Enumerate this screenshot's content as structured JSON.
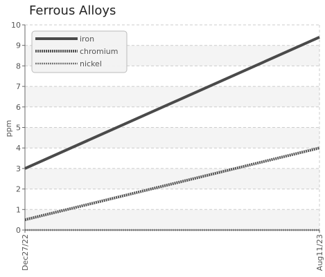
{
  "chart_data": {
    "type": "line",
    "title": "Ferrous Alloys",
    "xlabel": "",
    "ylabel": "ppm",
    "x": [
      "Dec27/22",
      "Aug11/23"
    ],
    "ylim": [
      0,
      10
    ],
    "yticks": [
      "0",
      "1",
      "2",
      "3",
      "4",
      "5",
      "6",
      "7",
      "8",
      "9",
      "10"
    ],
    "grid": true,
    "legend_position": "top-left",
    "series": [
      {
        "name": "iron",
        "values": [
          3.0,
          9.4
        ],
        "color": "#4a4a4a",
        "style": "solid"
      },
      {
        "name": "chromium",
        "values": [
          0.5,
          4.0
        ],
        "color": "#555555",
        "style": "dotted"
      },
      {
        "name": "nickel",
        "values": [
          0.0,
          0.0
        ],
        "color": "#777777",
        "style": "dotted-thin"
      }
    ]
  }
}
